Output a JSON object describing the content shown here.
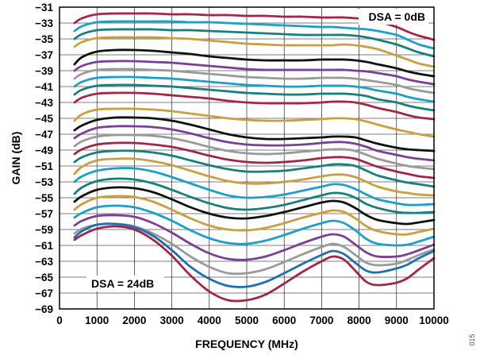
{
  "chart_data": {
    "type": "line",
    "xlabel": "FREQUENCY (MHz)",
    "ylabel": "GAIN (dB)",
    "xlim": [
      0,
      10000
    ],
    "ylim": [
      -69,
      -31
    ],
    "x_ticks": [
      0,
      1000,
      2000,
      3000,
      4000,
      5000,
      6000,
      7000,
      8000,
      9000,
      10000
    ],
    "y_ticks": [
      -31,
      -33,
      -35,
      -37,
      -39,
      -41,
      -43,
      -45,
      -47,
      -49,
      -51,
      -53,
      -55,
      -57,
      -59,
      -61,
      -63,
      -65,
      -67,
      -69
    ],
    "grid": true,
    "annotations": [
      {
        "text": "DSA = 0dB",
        "position": "top-right"
      },
      {
        "text": "DSA = 24dB",
        "position": "bottom-left"
      }
    ],
    "figure_number": "015",
    "x": [
      400,
      600,
      1000,
      1500,
      2000,
      2500,
      3000,
      3500,
      4000,
      4500,
      5000,
      5500,
      6000,
      6500,
      7000,
      7300,
      7600,
      7900,
      8200,
      8500,
      9000,
      9300,
      9600,
      10000
    ],
    "series": [
      {
        "color": "#a3264a",
        "values": [
          -33.0,
          -32.4,
          -31.9,
          -31.8,
          -31.8,
          -31.8,
          -31.9,
          -31.9,
          -32.0,
          -32.0,
          -32.1,
          -32.1,
          -32.2,
          -32.2,
          -32.3,
          -32.3,
          -32.3,
          -32.4,
          -32.5,
          -32.8,
          -33.5,
          -34.1,
          -34.6,
          -35.1
        ]
      },
      {
        "color": "#1aa0cb",
        "values": [
          -34.0,
          -33.4,
          -32.9,
          -32.8,
          -32.8,
          -32.8,
          -32.8,
          -32.9,
          -32.9,
          -33.0,
          -33.1,
          -33.2,
          -33.3,
          -33.4,
          -33.5,
          -33.5,
          -33.6,
          -33.7,
          -33.8,
          -34.0,
          -34.5,
          -35.1,
          -35.7,
          -36.2
        ]
      },
      {
        "color": "#17807d",
        "values": [
          -35.0,
          -34.4,
          -33.9,
          -33.8,
          -33.8,
          -33.8,
          -33.9,
          -33.9,
          -34.0,
          -34.1,
          -34.2,
          -34.3,
          -34.4,
          -34.5,
          -34.5,
          -34.5,
          -34.5,
          -34.6,
          -34.8,
          -35.1,
          -35.7,
          -36.2,
          -36.7,
          -37.2
        ]
      },
      {
        "color": "#c9a040",
        "values": [
          -36.0,
          -35.4,
          -34.9,
          -34.8,
          -34.8,
          -34.8,
          -34.9,
          -35.0,
          -35.2,
          -35.4,
          -35.6,
          -35.7,
          -35.8,
          -35.8,
          -35.8,
          -35.8,
          -35.7,
          -35.8,
          -36.0,
          -36.3,
          -37.1,
          -37.6,
          -38.1,
          -38.5
        ]
      },
      {
        "color": "#111111",
        "values": [
          -38.2,
          -37.3,
          -36.6,
          -36.4,
          -36.4,
          -36.5,
          -36.7,
          -36.9,
          -37.2,
          -37.4,
          -37.6,
          -37.7,
          -37.7,
          -37.7,
          -37.6,
          -37.6,
          -37.6,
          -37.7,
          -37.9,
          -38.2,
          -38.7,
          -39.1,
          -39.4,
          -39.7
        ]
      },
      {
        "color": "#7b3f96",
        "values": [
          -39.0,
          -38.4,
          -37.9,
          -37.8,
          -37.8,
          -37.9,
          -38.0,
          -38.2,
          -38.4,
          -38.6,
          -38.8,
          -38.9,
          -38.9,
          -38.9,
          -38.9,
          -38.9,
          -38.9,
          -39.0,
          -39.1,
          -39.3,
          -39.7,
          -40.1,
          -40.4,
          -40.7
        ]
      },
      {
        "color": "#9a9a9a",
        "values": [
          -40.0,
          -39.4,
          -38.9,
          -38.8,
          -38.8,
          -38.9,
          -39.0,
          -39.2,
          -39.4,
          -39.6,
          -39.8,
          -39.9,
          -40.0,
          -40.0,
          -39.9,
          -39.9,
          -39.9,
          -40.0,
          -40.2,
          -40.4,
          -40.8,
          -41.2,
          -41.5,
          -41.8
        ]
      },
      {
        "color": "#1aa0cb",
        "values": [
          -41.0,
          -40.4,
          -39.9,
          -39.8,
          -39.8,
          -39.9,
          -40.0,
          -40.2,
          -40.4,
          -40.6,
          -40.8,
          -40.9,
          -41.0,
          -41.0,
          -40.9,
          -40.9,
          -40.9,
          -41.0,
          -41.2,
          -41.5,
          -41.9,
          -42.3,
          -42.6,
          -42.9
        ]
      },
      {
        "color": "#17807d",
        "values": [
          -42.0,
          -41.4,
          -40.9,
          -40.8,
          -40.8,
          -40.9,
          -41.0,
          -41.2,
          -41.4,
          -41.6,
          -41.8,
          -41.9,
          -42.0,
          -42.0,
          -41.9,
          -41.9,
          -41.9,
          -42.0,
          -42.2,
          -42.6,
          -43.0,
          -43.4,
          -43.7,
          -44.0
        ]
      },
      {
        "color": "#a3264a",
        "values": [
          -43.0,
          -42.4,
          -41.9,
          -41.8,
          -41.8,
          -41.9,
          -42.1,
          -42.3,
          -42.5,
          -42.8,
          -43.0,
          -43.1,
          -43.1,
          -43.1,
          -43.0,
          -42.9,
          -42.9,
          -43.0,
          -43.3,
          -43.7,
          -44.2,
          -44.6,
          -44.9,
          -45.1
        ]
      },
      {
        "color": "#c9a040",
        "values": [
          -45.3,
          -44.5,
          -43.9,
          -43.8,
          -43.8,
          -43.9,
          -44.1,
          -44.4,
          -44.7,
          -45.0,
          -45.2,
          -45.3,
          -45.3,
          -45.2,
          -45.1,
          -45.0,
          -45.0,
          -45.1,
          -45.4,
          -45.8,
          -46.4,
          -46.7,
          -47.0,
          -47.3
        ]
      },
      {
        "color": "#111111",
        "values": [
          -46.5,
          -45.9,
          -45.2,
          -44.9,
          -44.9,
          -45.0,
          -45.3,
          -45.8,
          -46.4,
          -47.0,
          -47.4,
          -47.6,
          -47.6,
          -47.5,
          -47.4,
          -47.3,
          -47.3,
          -47.4,
          -47.8,
          -48.2,
          -48.7,
          -48.9,
          -49.0,
          -49.1
        ]
      },
      {
        "color": "#7b3f96",
        "values": [
          -47.5,
          -46.9,
          -46.2,
          -46.0,
          -46.0,
          -46.1,
          -46.4,
          -46.9,
          -47.5,
          -48.0,
          -48.3,
          -48.4,
          -48.4,
          -48.3,
          -48.1,
          -48.0,
          -48.0,
          -48.2,
          -48.6,
          -49.1,
          -49.6,
          -49.9,
          -50.1,
          -50.3
        ]
      },
      {
        "color": "#9a9a9a",
        "values": [
          -48.5,
          -47.9,
          -47.3,
          -47.1,
          -47.1,
          -47.2,
          -47.5,
          -48.0,
          -48.6,
          -49.1,
          -49.4,
          -49.5,
          -49.4,
          -49.2,
          -49.0,
          -48.9,
          -48.9,
          -49.1,
          -49.6,
          -50.1,
          -50.7,
          -51.0,
          -51.2,
          -51.4
        ]
      },
      {
        "color": "#a3264a",
        "values": [
          -49.5,
          -48.9,
          -48.3,
          -48.1,
          -48.1,
          -48.3,
          -48.6,
          -49.1,
          -49.7,
          -50.2,
          -50.5,
          -50.6,
          -50.5,
          -50.3,
          -50.0,
          -49.9,
          -49.9,
          -50.1,
          -50.6,
          -51.1,
          -51.7,
          -52.0,
          -52.3,
          -52.5
        ]
      },
      {
        "color": "#17807d",
        "values": [
          -50.5,
          -49.9,
          -49.3,
          -49.1,
          -49.1,
          -49.3,
          -49.7,
          -50.3,
          -50.9,
          -51.4,
          -51.7,
          -51.7,
          -51.6,
          -51.3,
          -51.0,
          -50.8,
          -50.8,
          -51.0,
          -51.6,
          -52.2,
          -52.8,
          -53.1,
          -53.3,
          -53.6
        ]
      },
      {
        "color": "#c9a040",
        "values": [
          -52.0,
          -51.1,
          -50.3,
          -50.1,
          -50.1,
          -50.4,
          -50.9,
          -51.6,
          -52.3,
          -52.9,
          -53.2,
          -53.2,
          -53.0,
          -52.7,
          -52.3,
          -52.1,
          -52.1,
          -52.4,
          -53.0,
          -53.6,
          -54.2,
          -54.4,
          -54.6,
          -54.7
        ]
      },
      {
        "color": "#1aa0cb",
        "values": [
          -53.0,
          -52.3,
          -51.6,
          -51.3,
          -51.3,
          -51.7,
          -52.4,
          -53.2,
          -54.0,
          -54.7,
          -55.0,
          -54.9,
          -54.6,
          -54.1,
          -53.6,
          -53.3,
          -53.4,
          -53.9,
          -54.6,
          -55.2,
          -55.7,
          -55.9,
          -55.9,
          -55.8
        ]
      },
      {
        "color": "#17807d",
        "values": [
          -54.5,
          -53.7,
          -52.9,
          -52.6,
          -52.7,
          -53.2,
          -54.0,
          -54.9,
          -55.7,
          -56.3,
          -56.5,
          -56.3,
          -55.9,
          -55.3,
          -54.7,
          -54.4,
          -54.5,
          -55.0,
          -55.8,
          -56.3,
          -56.8,
          -56.9,
          -56.9,
          -56.8
        ]
      },
      {
        "color": "#111111",
        "values": [
          -55.5,
          -54.8,
          -54.0,
          -53.7,
          -53.8,
          -54.3,
          -55.2,
          -56.2,
          -57.0,
          -57.5,
          -57.6,
          -57.3,
          -56.8,
          -56.2,
          -55.6,
          -55.4,
          -55.6,
          -56.3,
          -57.2,
          -57.8,
          -58.2,
          -58.3,
          -58.1,
          -57.8
        ]
      },
      {
        "color": "#c9a040",
        "values": [
          -56.5,
          -55.8,
          -55.0,
          -54.8,
          -54.9,
          -55.5,
          -56.5,
          -57.6,
          -58.5,
          -59.0,
          -59.1,
          -58.8,
          -58.2,
          -57.5,
          -56.9,
          -56.6,
          -56.8,
          -57.6,
          -58.6,
          -59.2,
          -59.6,
          -59.6,
          -59.3,
          -58.9
        ]
      },
      {
        "color": "#1aa0cb",
        "values": [
          -57.5,
          -56.9,
          -56.2,
          -56.0,
          -56.2,
          -56.9,
          -57.9,
          -59.1,
          -60.1,
          -60.7,
          -60.8,
          -60.4,
          -59.7,
          -58.9,
          -58.2,
          -57.9,
          -58.2,
          -59.1,
          -60.2,
          -60.8,
          -61.0,
          -60.9,
          -60.5,
          -59.9
        ]
      },
      {
        "color": "#7b3f96",
        "values": [
          -58.5,
          -57.9,
          -57.3,
          -57.2,
          -57.4,
          -58.2,
          -59.4,
          -60.8,
          -62.0,
          -62.7,
          -62.8,
          -62.4,
          -61.6,
          -60.7,
          -59.9,
          -59.6,
          -59.9,
          -60.9,
          -61.9,
          -62.4,
          -62.4,
          -62.1,
          -61.6,
          -60.9
        ]
      },
      {
        "color": "#9a9a9a",
        "values": [
          -59.5,
          -58.9,
          -58.4,
          -58.3,
          -58.6,
          -59.5,
          -60.8,
          -62.4,
          -63.7,
          -64.5,
          -64.5,
          -64.0,
          -63.1,
          -62.1,
          -61.2,
          -60.8,
          -61.2,
          -62.2,
          -63.2,
          -63.5,
          -63.3,
          -62.8,
          -62.2,
          -61.5
        ]
      },
      {
        "color": "#1f6fb2",
        "values": [
          -60.0,
          -59.2,
          -58.4,
          -58.3,
          -58.7,
          -59.8,
          -61.6,
          -63.7,
          -65.2,
          -66.1,
          -66.2,
          -65.6,
          -64.5,
          -63.3,
          -62.2,
          -61.7,
          -62.1,
          -63.2,
          -64.2,
          -64.4,
          -63.9,
          -63.4,
          -62.6,
          -61.7
        ]
      },
      {
        "color": "#a3264a",
        "values": [
          -60.3,
          -59.7,
          -58.9,
          -58.6,
          -59.0,
          -60.3,
          -62.3,
          -64.8,
          -66.8,
          -67.9,
          -67.9,
          -67.2,
          -65.8,
          -64.3,
          -63.0,
          -62.4,
          -62.8,
          -64.2,
          -65.6,
          -66.0,
          -65.7,
          -65.1,
          -64.0,
          -62.6
        ]
      }
    ]
  }
}
